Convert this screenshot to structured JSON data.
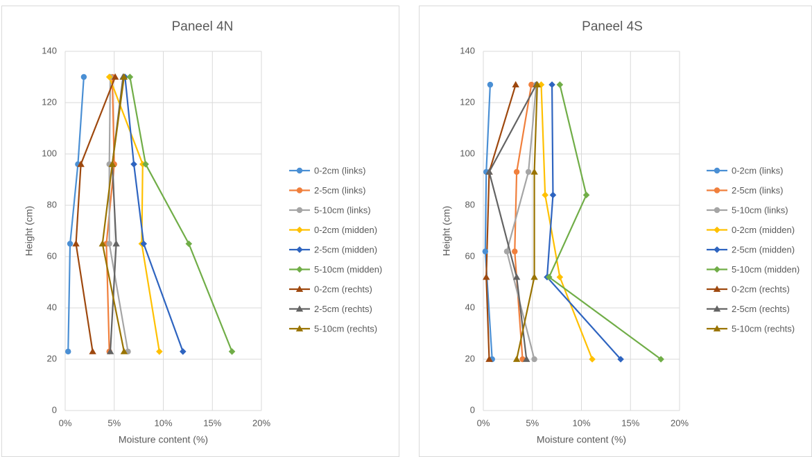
{
  "chart_data": [
    {
      "type": "line",
      "title": "Paneel 4N",
      "xlabel": "Moisture content (%)",
      "ylabel": "Height (cm)",
      "xlim": [
        0,
        20
      ],
      "ylim": [
        0,
        140
      ],
      "x_ticks": [
        "0%",
        "5%",
        "10%",
        "15%",
        "20%"
      ],
      "y_ticks": [
        "0",
        "20",
        "40",
        "60",
        "80",
        "100",
        "120",
        "140"
      ],
      "grid": true,
      "legend": "right",
      "series": [
        {
          "name": "0-2cm (links)",
          "color": "#4a8fd4",
          "marker": "circle",
          "points": [
            [
              1.9,
              130
            ],
            [
              1.3,
              96
            ],
            [
              0.5,
              65
            ],
            [
              0.3,
              23
            ]
          ]
        },
        {
          "name": "2-5cm (links)",
          "color": "#f07f3c",
          "marker": "circle",
          "points": [
            [
              4.8,
              130
            ],
            [
              5.0,
              96
            ],
            [
              4.2,
              65
            ],
            [
              4.5,
              23
            ]
          ]
        },
        {
          "name": "5-10cm (links)",
          "color": "#a5a5a5",
          "marker": "circle",
          "points": [
            [
              4.6,
              130
            ],
            [
              4.5,
              96
            ],
            [
              4.5,
              65
            ],
            [
              6.4,
              23
            ]
          ]
        },
        {
          "name": "0-2cm (midden)",
          "color": "#ffc000",
          "marker": "diamond",
          "points": [
            [
              4.5,
              130
            ],
            [
              7.9,
              96
            ],
            [
              7.8,
              65
            ],
            [
              9.6,
              23
            ]
          ]
        },
        {
          "name": "2-5cm (midden)",
          "color": "#2e64c0",
          "marker": "diamond",
          "points": [
            [
              6.1,
              130
            ],
            [
              7.0,
              96
            ],
            [
              8.0,
              65
            ],
            [
              12.0,
              23
            ]
          ]
        },
        {
          "name": "5-10cm (midden)",
          "color": "#70ad47",
          "marker": "diamond",
          "points": [
            [
              6.6,
              130
            ],
            [
              8.2,
              96
            ],
            [
              12.6,
              65
            ],
            [
              17.0,
              23
            ]
          ]
        },
        {
          "name": "0-2cm (rechts)",
          "color": "#9e480e",
          "marker": "triangle",
          "points": [
            [
              5.1,
              130
            ],
            [
              1.6,
              96
            ],
            [
              1.1,
              65
            ],
            [
              2.8,
              23
            ]
          ]
        },
        {
          "name": "2-5cm (rechts)",
          "color": "#636363",
          "marker": "triangle",
          "points": [
            [
              5.9,
              130
            ],
            [
              4.8,
              96
            ],
            [
              5.2,
              65
            ],
            [
              4.6,
              23
            ]
          ]
        },
        {
          "name": "5-10cm (rechts)",
          "color": "#997300",
          "marker": "triangle",
          "points": [
            [
              6.0,
              130
            ],
            [
              4.8,
              96
            ],
            [
              3.8,
              65
            ],
            [
              6.0,
              23
            ]
          ]
        }
      ]
    },
    {
      "type": "line",
      "title": "Paneel 4S",
      "xlabel": "Moisture content (%)",
      "ylabel": "Height (cm)",
      "xlim": [
        0,
        20
      ],
      "ylim": [
        0,
        140
      ],
      "x_ticks": [
        "0%",
        "5%",
        "10%",
        "15%",
        "20%"
      ],
      "y_ticks": [
        "0",
        "20",
        "40",
        "60",
        "80",
        "100",
        "120",
        "140"
      ],
      "grid": true,
      "legend": "right",
      "series": [
        {
          "name": "0-2cm (links)",
          "color": "#4a8fd4",
          "marker": "circle",
          "points": [
            [
              0.7,
              127
            ],
            [
              0.3,
              93
            ],
            [
              0.2,
              62
            ],
            [
              0.9,
              20
            ]
          ]
        },
        {
          "name": "2-5cm (links)",
          "color": "#f07f3c",
          "marker": "circle",
          "points": [
            [
              4.9,
              127
            ],
            [
              3.4,
              93
            ],
            [
              3.2,
              62
            ],
            [
              4.0,
              20
            ]
          ]
        },
        {
          "name": "5-10cm (links)",
          "color": "#a5a5a5",
          "marker": "circle",
          "points": [
            [
              5.4,
              127
            ],
            [
              4.6,
              93
            ],
            [
              2.4,
              62
            ],
            [
              5.2,
              20
            ]
          ]
        },
        {
          "name": "0-2cm (midden)",
          "color": "#ffc000",
          "marker": "diamond",
          "points": [
            [
              5.9,
              127
            ],
            [
              6.3,
              84
            ],
            [
              7.8,
              52
            ],
            [
              11.1,
              20
            ]
          ]
        },
        {
          "name": "2-5cm (midden)",
          "color": "#2e64c0",
          "marker": "diamond",
          "points": [
            [
              7.0,
              127
            ],
            [
              7.1,
              84
            ],
            [
              6.5,
              52
            ],
            [
              14.0,
              20
            ]
          ]
        },
        {
          "name": "5-10cm (midden)",
          "color": "#70ad47",
          "marker": "diamond",
          "points": [
            [
              7.8,
              127
            ],
            [
              10.5,
              84
            ],
            [
              6.7,
              52
            ],
            [
              18.1,
              20
            ]
          ]
        },
        {
          "name": "0-2cm (rechts)",
          "color": "#9e480e",
          "marker": "triangle",
          "points": [
            [
              3.3,
              127
            ],
            [
              0.6,
              93
            ],
            [
              0.3,
              52
            ],
            [
              0.6,
              20
            ]
          ]
        },
        {
          "name": "2-5cm (rechts)",
          "color": "#636363",
          "marker": "triangle",
          "points": [
            [
              5.4,
              127
            ],
            [
              0.6,
              93
            ],
            [
              3.4,
              52
            ],
            [
              4.4,
              20
            ]
          ]
        },
        {
          "name": "5-10cm (rechts)",
          "color": "#997300",
          "marker": "triangle",
          "points": [
            [
              5.5,
              127
            ],
            [
              5.2,
              93
            ],
            [
              5.2,
              52
            ],
            [
              3.4,
              20
            ]
          ]
        }
      ]
    }
  ]
}
